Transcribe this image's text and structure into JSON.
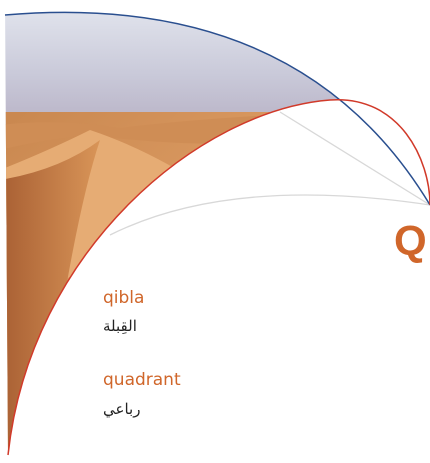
{
  "heading_letter": "Q",
  "terms": [
    {
      "english": "qibla",
      "arabic": "القِبلة"
    },
    {
      "english": "quadrant",
      "arabic": "رباعي"
    }
  ]
}
